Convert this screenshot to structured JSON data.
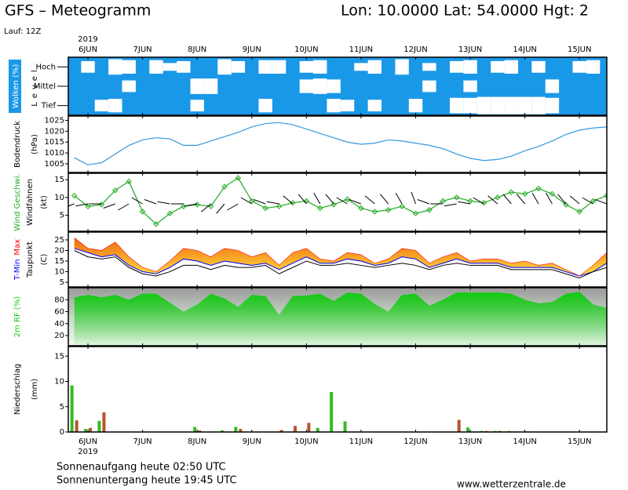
{
  "header": {
    "title": "GFS – Meteogramm",
    "location": "Lon: 10.0000 Lat: 54.0000 Hgt: 2",
    "run": "Lauf: 12Z"
  },
  "footer": {
    "sunrise": "Sonnenaufgang heute 02:50 UTC",
    "sunset": "Sonnenuntergang heute 19:45 UTC",
    "source": "www.wetterzentrale.de"
  },
  "time_axis": {
    "year": "2019",
    "x": [
      5.75,
      6,
      6.25,
      6.5,
      6.75,
      7,
      7.25,
      7.5,
      7.75,
      8,
      8.25,
      8.5,
      8.75,
      9,
      9.25,
      9.5,
      9.75,
      10,
      10.25,
      10.5,
      10.75,
      11,
      11.25,
      11.5,
      11.75,
      12,
      12.25,
      12.5,
      12.75,
      13,
      13.25,
      13.5,
      13.75,
      14,
      14.25,
      14.5,
      14.75,
      15,
      15.25,
      15.5
    ],
    "xlim": [
      5.64,
      15.5
    ],
    "xticks": [
      {
        "value": 6,
        "label": "6JUN"
      },
      {
        "value": 7,
        "label": "7JUN"
      },
      {
        "value": 8,
        "label": "8JUN"
      },
      {
        "value": 9,
        "label": "9JUN"
      },
      {
        "value": 10,
        "label": "10JUN"
      },
      {
        "value": 11,
        "label": "11JUN"
      },
      {
        "value": 12,
        "label": "12JUN"
      },
      {
        "value": 13,
        "label": "13JUN"
      },
      {
        "value": 14,
        "label": "14JUN"
      },
      {
        "value": 15,
        "label": "15JUN"
      }
    ]
  },
  "chart_data": [
    {
      "type": "heatmap",
      "ylabel": "Wolken (%)",
      "level_label": "Level",
      "color": "#ffffff",
      "background": "#1a98e8",
      "series": [
        {
          "name": "Hoch",
          "values": [
            0,
            60,
            0,
            80,
            70,
            0,
            70,
            40,
            60,
            0,
            0,
            80,
            60,
            0,
            70,
            70,
            0,
            60,
            70,
            0,
            0,
            40,
            70,
            0,
            80,
            0,
            40,
            0,
            60,
            70,
            0,
            60,
            70,
            0,
            60,
            0,
            0,
            60,
            70,
            0
          ]
        },
        {
          "name": "Mittel",
          "values": [
            0,
            0,
            0,
            0,
            60,
            0,
            0,
            0,
            0,
            80,
            80,
            0,
            0,
            0,
            0,
            0,
            0,
            70,
            80,
            70,
            0,
            0,
            0,
            0,
            0,
            0,
            60,
            0,
            0,
            60,
            0,
            0,
            0,
            0,
            0,
            70,
            0,
            0,
            0,
            0
          ]
        },
        {
          "name": "Tief",
          "values": [
            0,
            0,
            60,
            70,
            0,
            0,
            0,
            0,
            0,
            60,
            0,
            0,
            0,
            0,
            70,
            0,
            0,
            0,
            0,
            70,
            60,
            0,
            60,
            0,
            0,
            70,
            0,
            0,
            80,
            80,
            90,
            90,
            90,
            90,
            90,
            80,
            0,
            0,
            0,
            0
          ]
        }
      ]
    },
    {
      "type": "line",
      "ylabel": "Bodendruck",
      "unit": "(hPa)",
      "ylim": [
        1001,
        1027
      ],
      "yticks": [
        1005,
        1010,
        1015,
        1020,
        1025
      ],
      "series": [
        {
          "color": "#3399dd",
          "values": [
            1007.8,
            1004.5,
            1005.5,
            1009.5,
            1013.5,
            1016,
            1017,
            1016.5,
            1013.5,
            1013.5,
            1015.5,
            1017.5,
            1019.5,
            1022,
            1023.5,
            1024,
            1023,
            1021,
            1019,
            1017,
            1015,
            1014,
            1014.5,
            1016,
            1015.5,
            1014.5,
            1013.5,
            1012,
            1009.5,
            1007.5,
            1006.5,
            1007,
            1008.5,
            1011,
            1013,
            1015.5,
            1018.5,
            1020.5,
            1021.5,
            1022
          ]
        }
      ]
    },
    {
      "type": "line",
      "unit": "(kt)",
      "ylim": [
        0.5,
        16.8
      ],
      "yticks": [
        5,
        10,
        15
      ],
      "markers": true,
      "series": [
        {
          "name": "Wind Geschwi.",
          "color": "#22aa22",
          "values": [
            10.5,
            7.5,
            8,
            12,
            14.5,
            6,
            2.5,
            5.5,
            7.5,
            8,
            7.5,
            13,
            15.5,
            9,
            7,
            7.5,
            8.5,
            9,
            7,
            8,
            9.5,
            7,
            6,
            6.5,
            7.5,
            5.5,
            6.5,
            9,
            10,
            9,
            8.5,
            10,
            11.5,
            11,
            12.5,
            11,
            8,
            6,
            9,
            10.5
          ]
        }
      ],
      "barbs": {
        "name": "Windfahnen",
        "color": "#000000",
        "values": [
          250,
          260,
          270,
          250,
          240,
          300,
          290,
          280,
          270,
          260,
          230,
          220,
          240,
          300,
          290,
          280,
          310,
          320,
          330,
          320,
          300,
          290,
          310,
          320,
          330,
          340,
          290,
          270,
          260,
          280,
          300,
          310,
          320,
          320,
          330,
          330,
          320,
          310,
          300,
          290
        ]
      }
    },
    {
      "type": "band",
      "unit": "(C)",
      "ylim": [
        2.8,
        28.7
      ],
      "yticks": [
        5,
        10,
        15,
        20,
        25
      ],
      "fill": [
        "#ee6a10",
        "#ffe040"
      ],
      "series": [
        {
          "name": "T-Min",
          "color": "#0000ff",
          "values": [
            21,
            19,
            17,
            18,
            13,
            10,
            9,
            12,
            16,
            15,
            13,
            15,
            14,
            13,
            14,
            11,
            14,
            17,
            14,
            14,
            16,
            15,
            13,
            14,
            17,
            16,
            12,
            14,
            16,
            14,
            14,
            14,
            12,
            12,
            12,
            12,
            10,
            8,
            10,
            14
          ]
        },
        {
          "name": "Max",
          "color": "#ff0000",
          "values": [
            26,
            21,
            20,
            24,
            17,
            12,
            10,
            15,
            21,
            20,
            17,
            21,
            20,
            17,
            19,
            13,
            19,
            21,
            16,
            15,
            19,
            18,
            14,
            16,
            21,
            20,
            14,
            17,
            19,
            15,
            16,
            16,
            14,
            15,
            13,
            14,
            11,
            8,
            13,
            19
          ]
        },
        {
          "name": "Taupunkt",
          "color": "#000000",
          "values": [
            20,
            17,
            16,
            17,
            12,
            9,
            8,
            10,
            13,
            13,
            11,
            13,
            12,
            12,
            13,
            9,
            12,
            15,
            13,
            13,
            14,
            13,
            12,
            13,
            14,
            13,
            11,
            13,
            14,
            13,
            13,
            13,
            11,
            11,
            11,
            11,
            9,
            7,
            10,
            12
          ]
        }
      ]
    },
    {
      "type": "area",
      "ylabel": "2m RF (%)",
      "ylim": [
        3,
        100
      ],
      "yticks": [
        20,
        40,
        60,
        80
      ],
      "series": [
        {
          "color": "#11cc11",
          "values": [
            84,
            88,
            84,
            88,
            80,
            90,
            90,
            75,
            60,
            72,
            90,
            82,
            68,
            88,
            86,
            55,
            86,
            87,
            90,
            78,
            92,
            90,
            73,
            60,
            88,
            90,
            70,
            80,
            92,
            92,
            92,
            92,
            90,
            80,
            74,
            76,
            90,
            93,
            72,
            66
          ]
        }
      ]
    },
    {
      "type": "bar",
      "ylabel": "Niederschlag",
      "unit": "(mm)",
      "ylim": [
        0,
        16.9
      ],
      "yticks": [
        0,
        5,
        10,
        15
      ],
      "series": [
        {
          "color": "#33bb22",
          "values": [
            9.2,
            0.6,
            2.2,
            0,
            0,
            0,
            0,
            0,
            0,
            1.0,
            0,
            0.3,
            1.0,
            0,
            0,
            0,
            0,
            0,
            0.8,
            7.9,
            2.1,
            0,
            0,
            0,
            0,
            0,
            0,
            0,
            0,
            0.9,
            0.2,
            0.2,
            0.2,
            0.1,
            0,
            0,
            0,
            0,
            0,
            0
          ]
        },
        {
          "color": "#b5562a",
          "values": [
            2.3,
            0.8,
            3.9,
            0,
            0,
            0,
            0,
            0,
            0,
            0.3,
            0,
            0,
            0.6,
            0,
            0,
            0.4,
            1.2,
            1.8,
            0,
            0,
            0,
            0,
            0,
            0,
            0,
            0,
            0,
            0,
            2.4,
            0,
            0.2,
            0.2,
            0.1,
            0.1,
            0,
            0,
            0,
            0,
            0,
            0
          ]
        }
      ]
    }
  ]
}
